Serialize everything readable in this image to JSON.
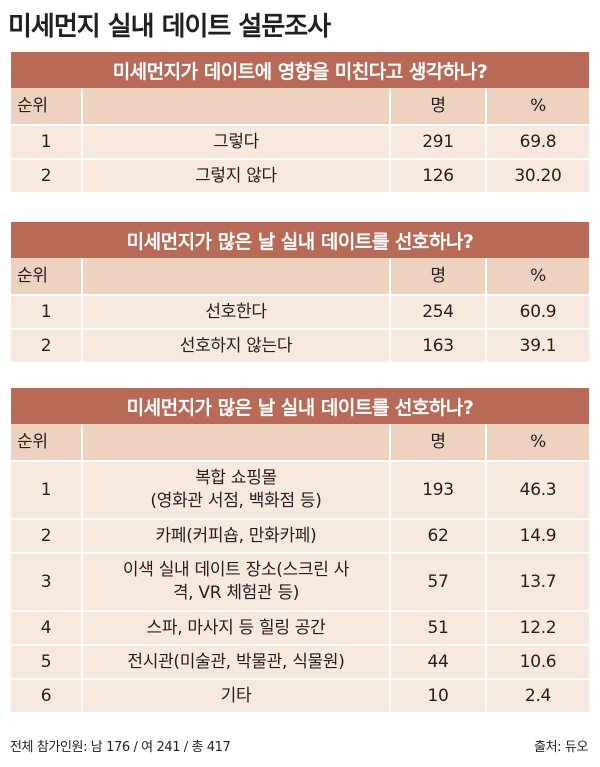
{
  "page_title": "미세먼지 실내 데이트 설문조사",
  "columns": {
    "rank": "순위",
    "count": "명",
    "pct": "%"
  },
  "surveys": [
    {
      "title": "미세먼지가 데이트에 영향을 미친다고 생각하나?",
      "rows": [
        {
          "rank": "1",
          "label": "그렇다",
          "count": "291",
          "pct": "69.8"
        },
        {
          "rank": "2",
          "label": "그렇지 않다",
          "count": "126",
          "pct": "30.20"
        }
      ]
    },
    {
      "title": "미세먼지가 많은 날 실내 데이트를 선호하나?",
      "rows": [
        {
          "rank": "1",
          "label": "선호한다",
          "count": "254",
          "pct": "60.9"
        },
        {
          "rank": "2",
          "label": "선호하지 않는다",
          "count": "163",
          "pct": "39.1"
        }
      ]
    },
    {
      "title": "미세먼지가 많은 날 실내 데이트를 선호하나?",
      "rows": [
        {
          "rank": "1",
          "label_line1": "복합 쇼핑몰",
          "label_line2": "(영화관 서점, 백화점 등)",
          "count": "193",
          "pct": "46.3"
        },
        {
          "rank": "2",
          "label": "카페(커피숍, 만화카페)",
          "count": "62",
          "pct": "14.9"
        },
        {
          "rank": "3",
          "label_line1": "이색 실내 데이트 장소(스크린 사",
          "label_line2": "격, VR 체험관 등)",
          "count": "57",
          "pct": "13.7"
        },
        {
          "rank": "4",
          "label": "스파, 마사지 등 힐링 공간",
          "count": "51",
          "pct": "12.2"
        },
        {
          "rank": "5",
          "label": "전시관(미술관, 박물관, 식물원)",
          "count": "44",
          "pct": "10.6"
        },
        {
          "rank": "6",
          "label": "기타",
          "count": "10",
          "pct": "2.4"
        }
      ]
    }
  ],
  "footer": {
    "participants": "전체 참가인원: 남 176 / 여 241 / 총 417",
    "source": "출처: 듀오"
  },
  "colors": {
    "title_bar": "#b86a56",
    "header_row": "#ecd2bf",
    "data_row": "#f8e9de"
  }
}
